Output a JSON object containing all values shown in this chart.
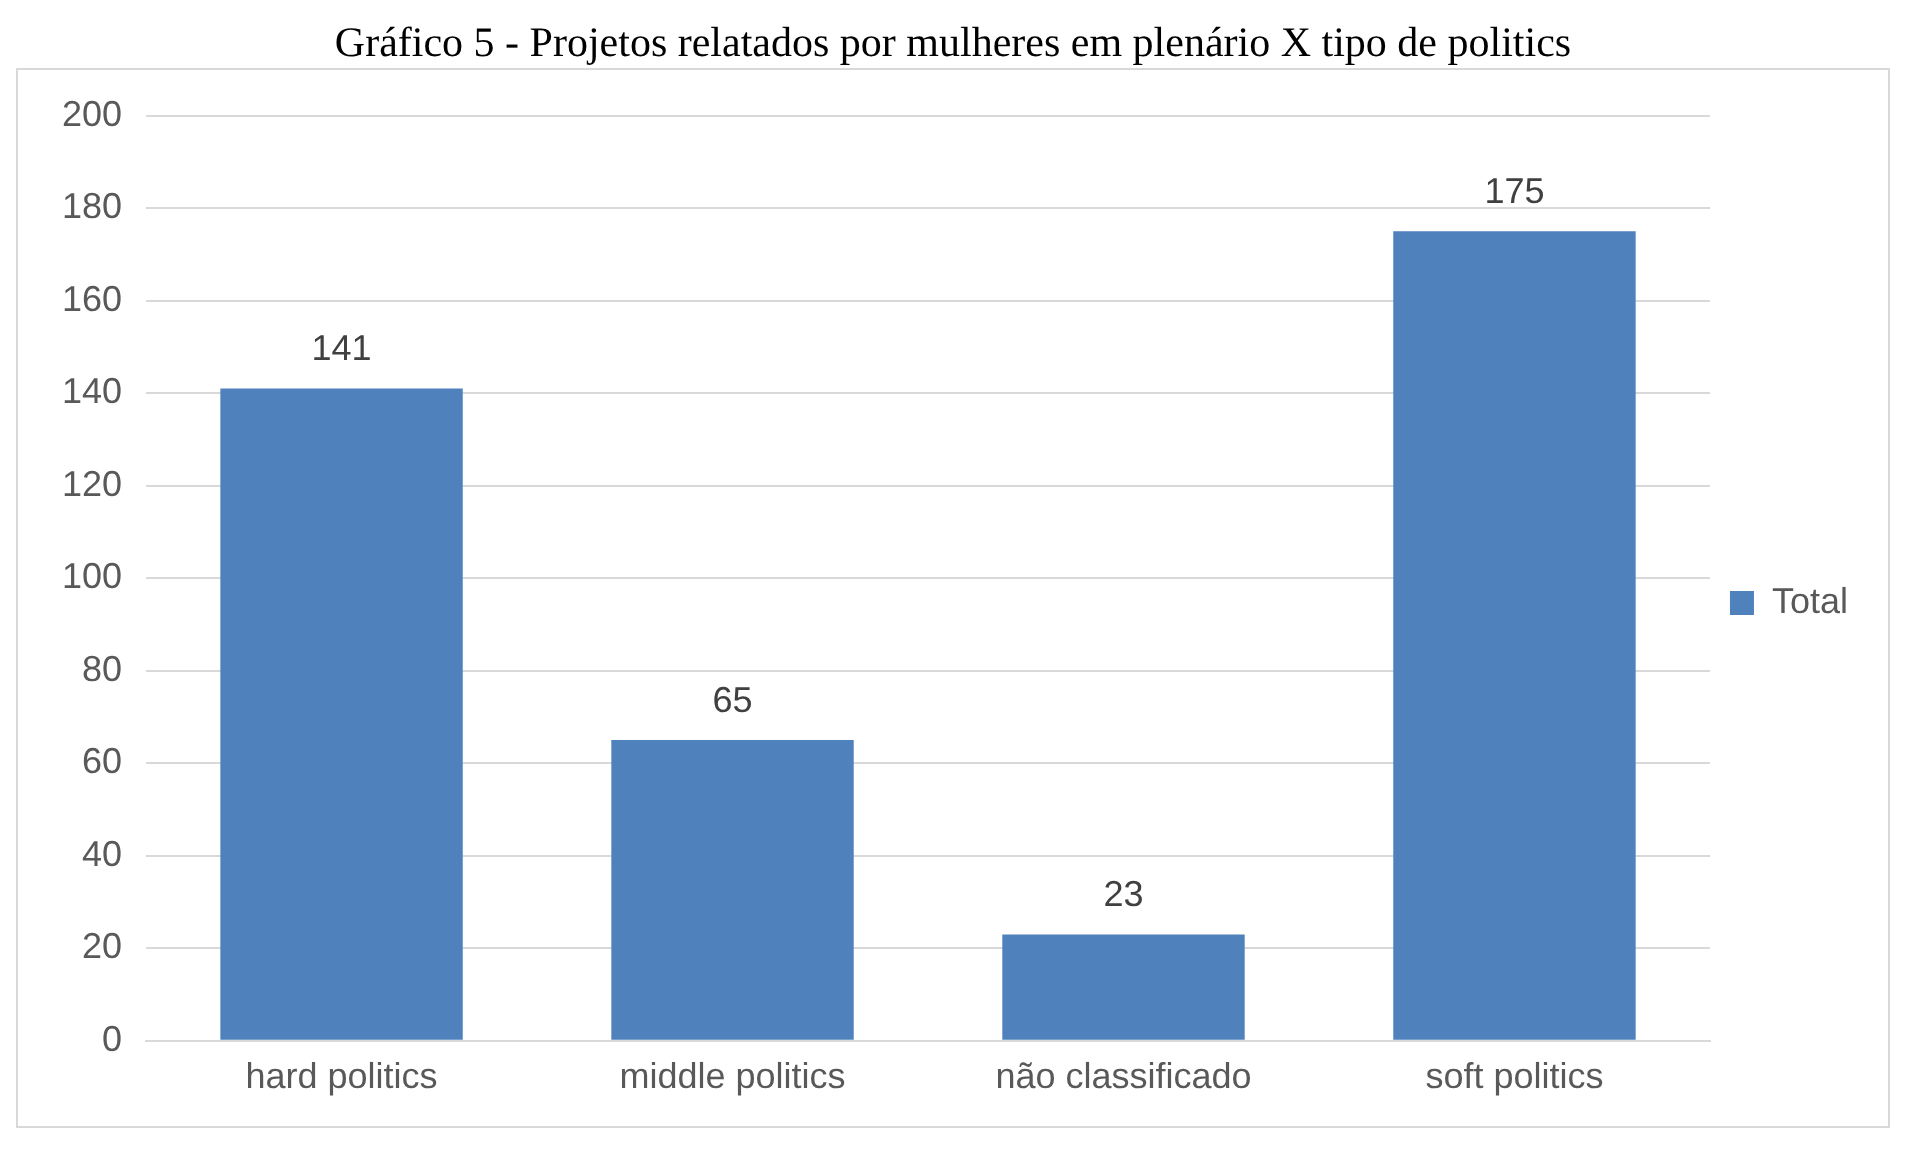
{
  "chart_data": {
    "type": "bar",
    "title": "Gráfico 5 - Projetos relatados por mulheres em plenário X tipo de politics",
    "categories": [
      "hard politics",
      "middle politics",
      "não classificado",
      "soft politics"
    ],
    "series": [
      {
        "name": "Total",
        "color": "#4f81bd",
        "values": [
          141,
          65,
          23,
          175
        ]
      }
    ],
    "ylim": [
      0,
      200
    ],
    "yticks": [
      0,
      20,
      40,
      60,
      80,
      100,
      120,
      140,
      160,
      180,
      200
    ],
    "grid": "y",
    "legend": "right",
    "data_labels": true
  }
}
